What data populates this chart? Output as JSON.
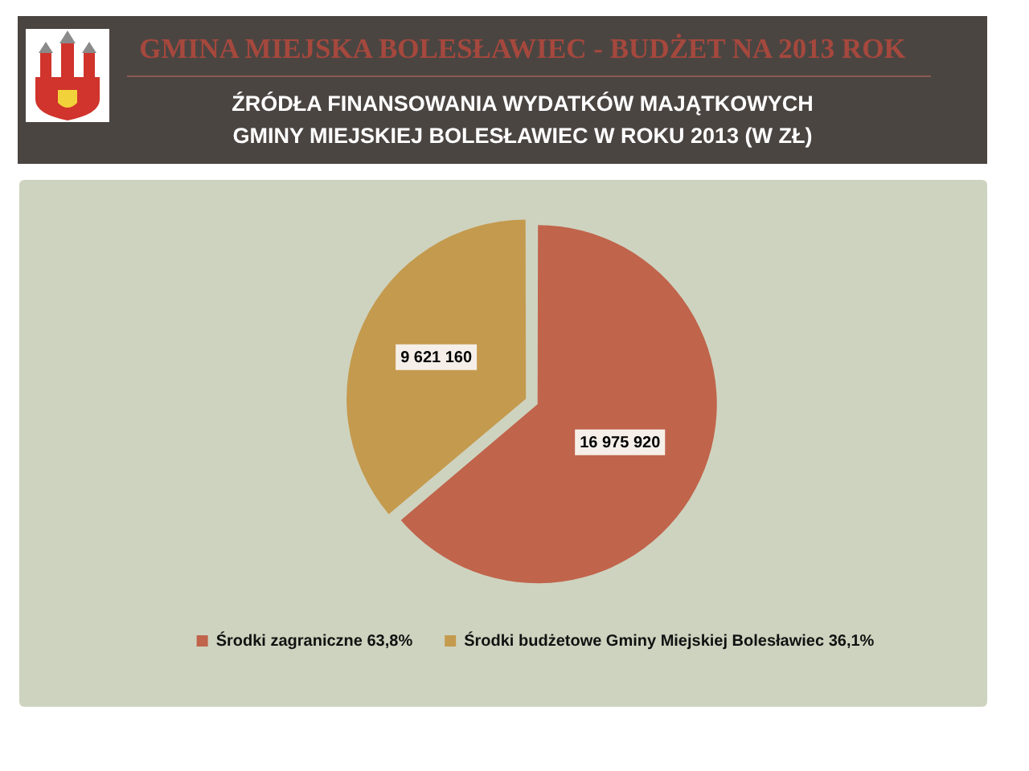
{
  "chart_data": {
    "type": "pie",
    "title": "GMINA MIEJSKA BOLESŁAWIEC - BUDŻET NA 2013 ROK",
    "subtitle": "ŹRÓDŁA FINANSOWANIA WYDATKÓW MAJĄTKOWYCH\nGMINY MIEJSKIEJ BOLESŁAWIEC W ROKU 2013 (W ZŁ)",
    "categories": [
      "Środki zagraniczne 63,8%",
      "Środki budżetowe Gminy Miejskiej Bolesławiec 36,1%"
    ],
    "values": [
      16975920,
      9621160
    ],
    "colors": [
      "#c0644c",
      "#c49a4e"
    ],
    "value_labels": [
      "16 975 920",
      "9 621 160"
    ],
    "legend": "bottom"
  }
}
